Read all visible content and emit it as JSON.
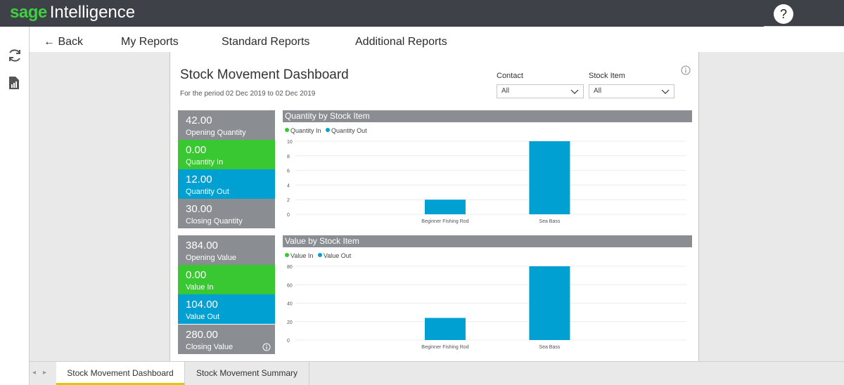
{
  "app": {
    "logo_brand": "sage",
    "logo_product": "Intelligence",
    "help_label": "?"
  },
  "nav": {
    "back": "← Back",
    "my_reports": "My Reports",
    "standard_reports": "Standard Reports",
    "additional_reports": "Additional Reports"
  },
  "report": {
    "title": "Stock Movement Dashboard",
    "period": "For the period 02 Dec 2019 to 02 Dec 2019",
    "filters": {
      "contact_label": "Contact",
      "contact_value": "All",
      "stock_item_label": "Stock Item",
      "stock_item_value": "All"
    },
    "kpis": {
      "opening_quantity": {
        "value": "42.00",
        "label": "Opening Quantity"
      },
      "quantity_in": {
        "value": "0.00",
        "label": "Quantity In"
      },
      "quantity_out": {
        "value": "12.00",
        "label": "Quantity Out"
      },
      "closing_quantity": {
        "value": "30.00",
        "label": "Closing Quantity"
      },
      "opening_value": {
        "value": "384.00",
        "label": "Opening Value"
      },
      "value_in": {
        "value": "0.00",
        "label": "Value In"
      },
      "value_out": {
        "value": "104.00",
        "label": "Value Out"
      },
      "closing_value": {
        "value": "280.00",
        "label": "Closing Value"
      }
    }
  },
  "colors": {
    "in": "#39c732",
    "out": "#00a0d2",
    "tile_gray": "#8a8d91"
  },
  "chart_data": [
    {
      "type": "bar",
      "title": "Quantity by Stock Item",
      "categories": [
        "Beginner Fishing Rod",
        "Sea Bass"
      ],
      "series": [
        {
          "name": "Quantity In",
          "values": [
            0,
            0
          ]
        },
        {
          "name": "Quantity Out",
          "values": [
            2,
            10
          ]
        }
      ],
      "ylim": [
        0,
        10
      ],
      "yticks": [
        0,
        2,
        4,
        6,
        8,
        10
      ],
      "legend": "top-left",
      "grid": true
    },
    {
      "type": "bar",
      "title": "Value by Stock Item",
      "categories": [
        "Beginner Fishing Rod",
        "Sea Bass"
      ],
      "series": [
        {
          "name": "Value In",
          "values": [
            0,
            0
          ]
        },
        {
          "name": "Value Out",
          "values": [
            24,
            80
          ]
        }
      ],
      "ylim": [
        0,
        80
      ],
      "yticks": [
        0,
        20,
        40,
        60,
        80
      ],
      "legend": "top-left",
      "grid": true
    }
  ],
  "tabs": {
    "dashboard": "Stock Movement Dashboard",
    "summary": "Stock Movement Summary"
  }
}
